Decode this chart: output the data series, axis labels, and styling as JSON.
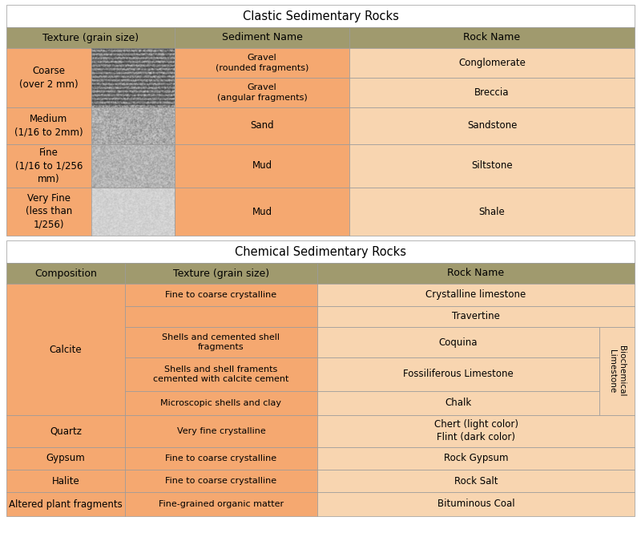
{
  "title_clastic": "Clastic Sedimentary Rocks",
  "title_chemical": "Chemical Sedimentary Rocks",
  "header_color": "#a09a6e",
  "orange_bg": "#f5a870",
  "light_orange_bg": "#f8d5b0",
  "white_bg": "#ffffff",
  "border_color": "#999999",
  "text_color": "#000000",
  "figsize": [
    8.0,
    6.7
  ],
  "dpi": 100,
  "clastic_headers": [
    "Texture (grain size)",
    "Sediment Name",
    "Rock Name"
  ],
  "chemical_headers": [
    "Composition",
    "Texture (grain size)",
    "Rock Name"
  ],
  "font_size_title": 10.5,
  "font_size_header": 9,
  "font_size_body": 8.5,
  "font_size_small": 8
}
